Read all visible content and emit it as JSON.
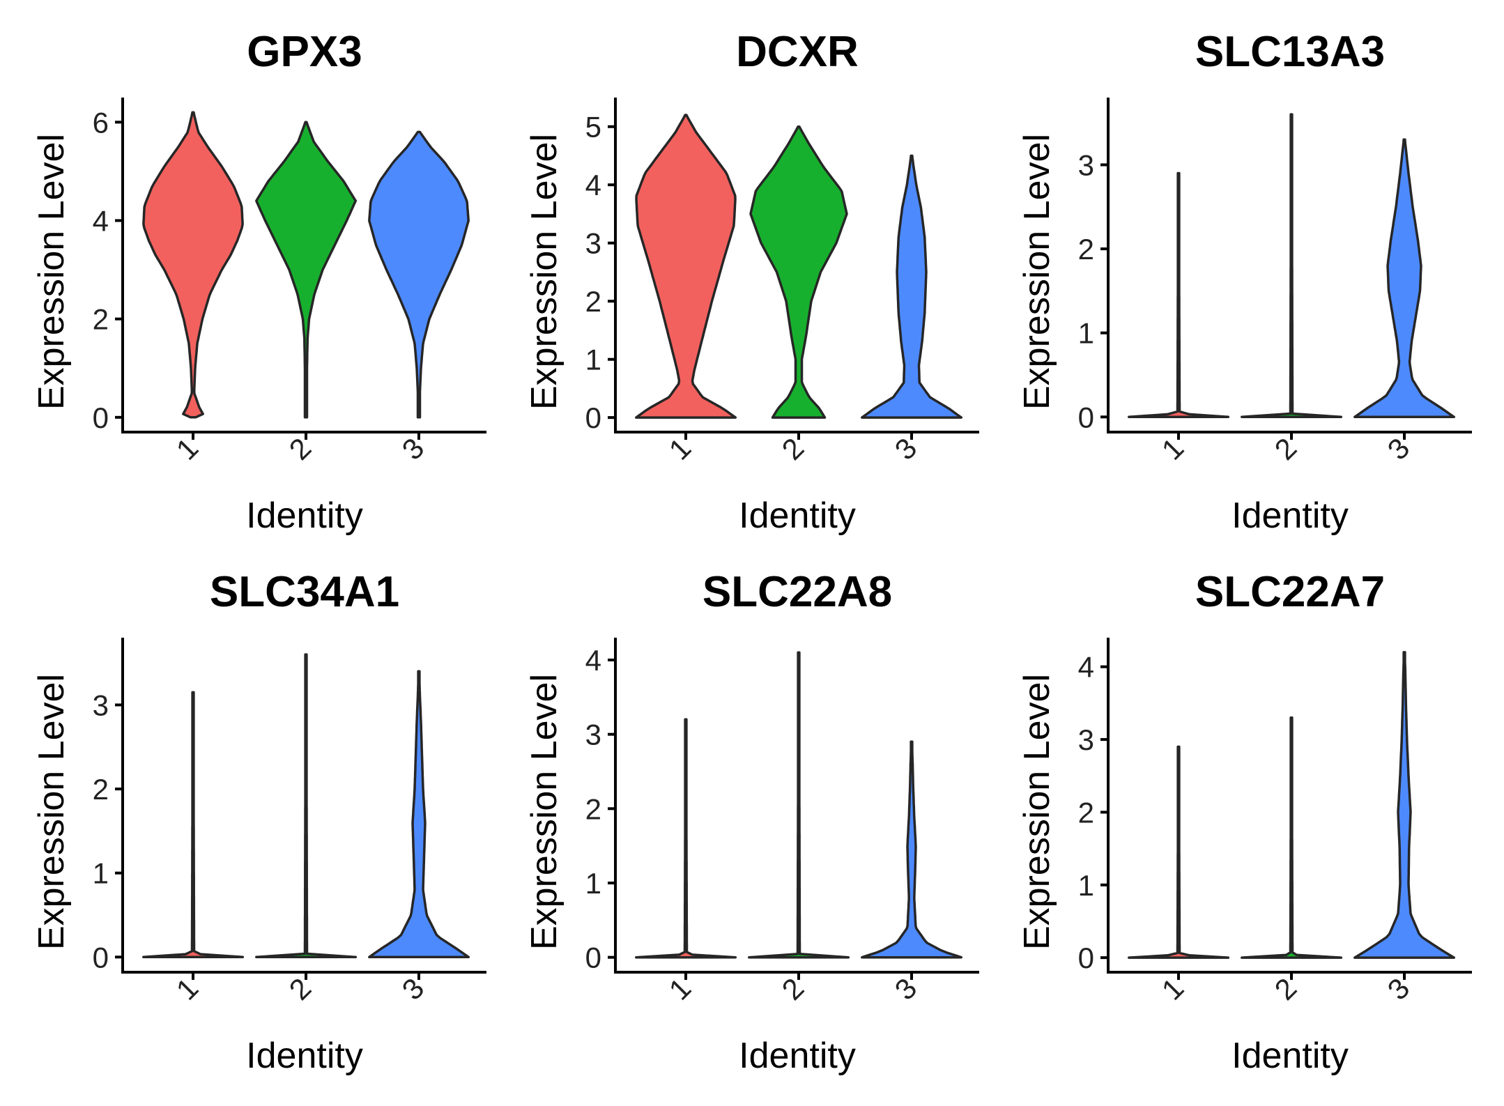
{
  "chart_data": [
    {
      "type": "violin",
      "title": "GPX3",
      "xlabel": "Identity",
      "ylabel": "Expression Level",
      "categories": [
        "1",
        "2",
        "3"
      ],
      "ylim": [
        -0.3,
        6.5
      ],
      "yticks": [
        0,
        2,
        4,
        6
      ],
      "violins": [
        {
          "max": 6.2,
          "density": [
            [
              0,
              0.05
            ],
            [
              0.05,
              0.2
            ],
            [
              0.2,
              0.12
            ],
            [
              0.5,
              0.02
            ],
            [
              1.0,
              0.04
            ],
            [
              1.5,
              0.08
            ],
            [
              2.0,
              0.18
            ],
            [
              2.5,
              0.32
            ],
            [
              3.0,
              0.55
            ],
            [
              3.3,
              0.72
            ],
            [
              3.6,
              0.85
            ],
            [
              3.9,
              0.95
            ],
            [
              4.3,
              0.93
            ],
            [
              4.7,
              0.78
            ],
            [
              5.1,
              0.55
            ],
            [
              5.5,
              0.28
            ],
            [
              5.8,
              0.1
            ],
            [
              6.2,
              0.01
            ]
          ]
        },
        {
          "max": 6.0,
          "density": [
            [
              0,
              0.02
            ],
            [
              0.3,
              0.02
            ],
            [
              1.0,
              0.02
            ],
            [
              1.6,
              0.03
            ],
            [
              2.0,
              0.06
            ],
            [
              2.5,
              0.16
            ],
            [
              3.0,
              0.32
            ],
            [
              3.5,
              0.55
            ],
            [
              4.0,
              0.78
            ],
            [
              4.4,
              0.95
            ],
            [
              4.8,
              0.72
            ],
            [
              5.2,
              0.42
            ],
            [
              5.6,
              0.15
            ],
            [
              6.0,
              0.01
            ]
          ]
        },
        {
          "max": 5.8,
          "density": [
            [
              0,
              0.02
            ],
            [
              0.5,
              0.02
            ],
            [
              1.0,
              0.04
            ],
            [
              1.5,
              0.08
            ],
            [
              2.0,
              0.2
            ],
            [
              2.5,
              0.4
            ],
            [
              3.0,
              0.62
            ],
            [
              3.5,
              0.82
            ],
            [
              4.0,
              0.95
            ],
            [
              4.4,
              0.92
            ],
            [
              4.8,
              0.75
            ],
            [
              5.2,
              0.48
            ],
            [
              5.5,
              0.22
            ],
            [
              5.8,
              0.02
            ]
          ]
        }
      ]
    },
    {
      "type": "violin",
      "title": "DCXR",
      "xlabel": "Identity",
      "ylabel": "Expression Level",
      "categories": [
        "1",
        "2",
        "3"
      ],
      "ylim": [
        -0.25,
        5.5
      ],
      "yticks": [
        0,
        1,
        2,
        3,
        4,
        5
      ],
      "violins": [
        {
          "max": 5.2,
          "density": [
            [
              0,
              0.95
            ],
            [
              0.15,
              0.72
            ],
            [
              0.35,
              0.32
            ],
            [
              0.6,
              0.12
            ],
            [
              0.8,
              0.16
            ],
            [
              1.3,
              0.3
            ],
            [
              2.0,
              0.5
            ],
            [
              2.7,
              0.72
            ],
            [
              3.3,
              0.92
            ],
            [
              3.8,
              0.95
            ],
            [
              4.2,
              0.78
            ],
            [
              4.6,
              0.45
            ],
            [
              4.9,
              0.2
            ],
            [
              5.2,
              0.01
            ]
          ]
        },
        {
          "max": 5.0,
          "density": [
            [
              0,
              0.5
            ],
            [
              0.15,
              0.4
            ],
            [
              0.35,
              0.2
            ],
            [
              0.6,
              0.06
            ],
            [
              1.0,
              0.06
            ],
            [
              1.4,
              0.14
            ],
            [
              2.0,
              0.24
            ],
            [
              2.5,
              0.42
            ],
            [
              3.0,
              0.72
            ],
            [
              3.5,
              0.92
            ],
            [
              3.9,
              0.82
            ],
            [
              4.3,
              0.48
            ],
            [
              4.7,
              0.2
            ],
            [
              5.0,
              0.01
            ]
          ]
        },
        {
          "max": 4.5,
          "density": [
            [
              0,
              0.95
            ],
            [
              0.15,
              0.72
            ],
            [
              0.35,
              0.35
            ],
            [
              0.6,
              0.15
            ],
            [
              0.9,
              0.14
            ],
            [
              1.3,
              0.2
            ],
            [
              1.8,
              0.25
            ],
            [
              2.5,
              0.28
            ],
            [
              3.1,
              0.25
            ],
            [
              3.6,
              0.18
            ],
            [
              4.0,
              0.09
            ],
            [
              4.3,
              0.04
            ],
            [
              4.5,
              0.01
            ]
          ]
        }
      ]
    },
    {
      "type": "violin",
      "title": "SLC13A3",
      "xlabel": "Identity",
      "ylabel": "Expression Level",
      "categories": [
        "1",
        "2",
        "3"
      ],
      "ylim": [
        -0.18,
        3.8
      ],
      "yticks": [
        0,
        1,
        2,
        3
      ],
      "violins": [
        {
          "max": 2.9,
          "density": [
            [
              0,
              0.95
            ],
            [
              0.02,
              0.5
            ],
            [
              0.04,
              0.02
            ],
            [
              2.9,
              0.005
            ]
          ]
        },
        {
          "max": 3.6,
          "density": [
            [
              0,
              0.95
            ],
            [
              0.02,
              0.5
            ],
            [
              0.04,
              0.02
            ],
            [
              3.6,
              0.005
            ]
          ]
        },
        {
          "max": 3.3,
          "density": [
            [
              0,
              0.95
            ],
            [
              0.1,
              0.72
            ],
            [
              0.25,
              0.35
            ],
            [
              0.45,
              0.15
            ],
            [
              0.65,
              0.1
            ],
            [
              0.9,
              0.14
            ],
            [
              1.2,
              0.22
            ],
            [
              1.5,
              0.3
            ],
            [
              1.8,
              0.32
            ],
            [
              2.1,
              0.26
            ],
            [
              2.5,
              0.16
            ],
            [
              2.9,
              0.08
            ],
            [
              3.3,
              0.01
            ]
          ]
        }
      ]
    },
    {
      "type": "violin",
      "title": "SLC34A1",
      "xlabel": "Identity",
      "ylabel": "Expression Level",
      "categories": [
        "1",
        "2",
        "3"
      ],
      "ylim": [
        -0.18,
        3.8
      ],
      "yticks": [
        0,
        1,
        2,
        3
      ],
      "violins": [
        {
          "max": 3.15,
          "density": [
            [
              0,
              0.95
            ],
            [
              0.02,
              0.5
            ],
            [
              0.04,
              0.02
            ],
            [
              3.15,
              0.005
            ]
          ]
        },
        {
          "max": 3.6,
          "density": [
            [
              0,
              0.95
            ],
            [
              0.02,
              0.5
            ],
            [
              0.04,
              0.02
            ],
            [
              3.6,
              0.005
            ]
          ]
        },
        {
          "max": 3.4,
          "density": [
            [
              0,
              0.95
            ],
            [
              0.1,
              0.72
            ],
            [
              0.25,
              0.35
            ],
            [
              0.5,
              0.15
            ],
            [
              0.8,
              0.08
            ],
            [
              1.2,
              0.1
            ],
            [
              1.6,
              0.12
            ],
            [
              2.0,
              0.08
            ],
            [
              2.4,
              0.06
            ],
            [
              2.8,
              0.04
            ],
            [
              3.1,
              0.02
            ],
            [
              3.4,
              0.005
            ]
          ]
        }
      ]
    },
    {
      "type": "violin",
      "title": "SLC22A8",
      "xlabel": "Identity",
      "ylabel": "Expression Level",
      "categories": [
        "1",
        "2",
        "3"
      ],
      "ylim": [
        -0.2,
        4.3
      ],
      "yticks": [
        0,
        1,
        2,
        3,
        4
      ],
      "violins": [
        {
          "max": 3.2,
          "density": [
            [
              0,
              0.95
            ],
            [
              0.02,
              0.5
            ],
            [
              0.04,
              0.02
            ],
            [
              3.2,
              0.005
            ]
          ]
        },
        {
          "max": 4.1,
          "density": [
            [
              0,
              0.95
            ],
            [
              0.02,
              0.5
            ],
            [
              0.04,
              0.02
            ],
            [
              4.1,
              0.005
            ]
          ]
        },
        {
          "max": 2.9,
          "density": [
            [
              0,
              0.95
            ],
            [
              0.08,
              0.6
            ],
            [
              0.2,
              0.28
            ],
            [
              0.4,
              0.08
            ],
            [
              0.8,
              0.05
            ],
            [
              1.2,
              0.07
            ],
            [
              1.5,
              0.08
            ],
            [
              1.9,
              0.05
            ],
            [
              2.3,
              0.03
            ],
            [
              2.6,
              0.02
            ],
            [
              2.9,
              0.005
            ]
          ]
        }
      ]
    },
    {
      "type": "violin",
      "title": "SLC22A7",
      "xlabel": "Identity",
      "ylabel": "Expression Level",
      "categories": [
        "1",
        "2",
        "3"
      ],
      "ylim": [
        -0.2,
        4.4
      ],
      "yticks": [
        0,
        1,
        2,
        3,
        4
      ],
      "violins": [
        {
          "max": 2.9,
          "density": [
            [
              0,
              0.95
            ],
            [
              0.02,
              0.5
            ],
            [
              0.04,
              0.02
            ],
            [
              2.9,
              0.005
            ]
          ]
        },
        {
          "max": 3.3,
          "density": [
            [
              0,
              0.95
            ],
            [
              0.02,
              0.5
            ],
            [
              0.04,
              0.02
            ],
            [
              3.3,
              0.005
            ]
          ]
        },
        {
          "max": 4.2,
          "density": [
            [
              0,
              0.95
            ],
            [
              0.1,
              0.72
            ],
            [
              0.3,
              0.3
            ],
            [
              0.6,
              0.12
            ],
            [
              1.0,
              0.08
            ],
            [
              1.5,
              0.09
            ],
            [
              2.0,
              0.12
            ],
            [
              2.5,
              0.08
            ],
            [
              3.0,
              0.05
            ],
            [
              3.5,
              0.03
            ],
            [
              3.9,
              0.02
            ],
            [
              4.2,
              0.005
            ]
          ]
        }
      ]
    }
  ],
  "colors": {
    "1": "#F2615E",
    "2": "#17B02E",
    "3": "#4D8AFE",
    "outline": "#262626",
    "axis": "#000000"
  }
}
